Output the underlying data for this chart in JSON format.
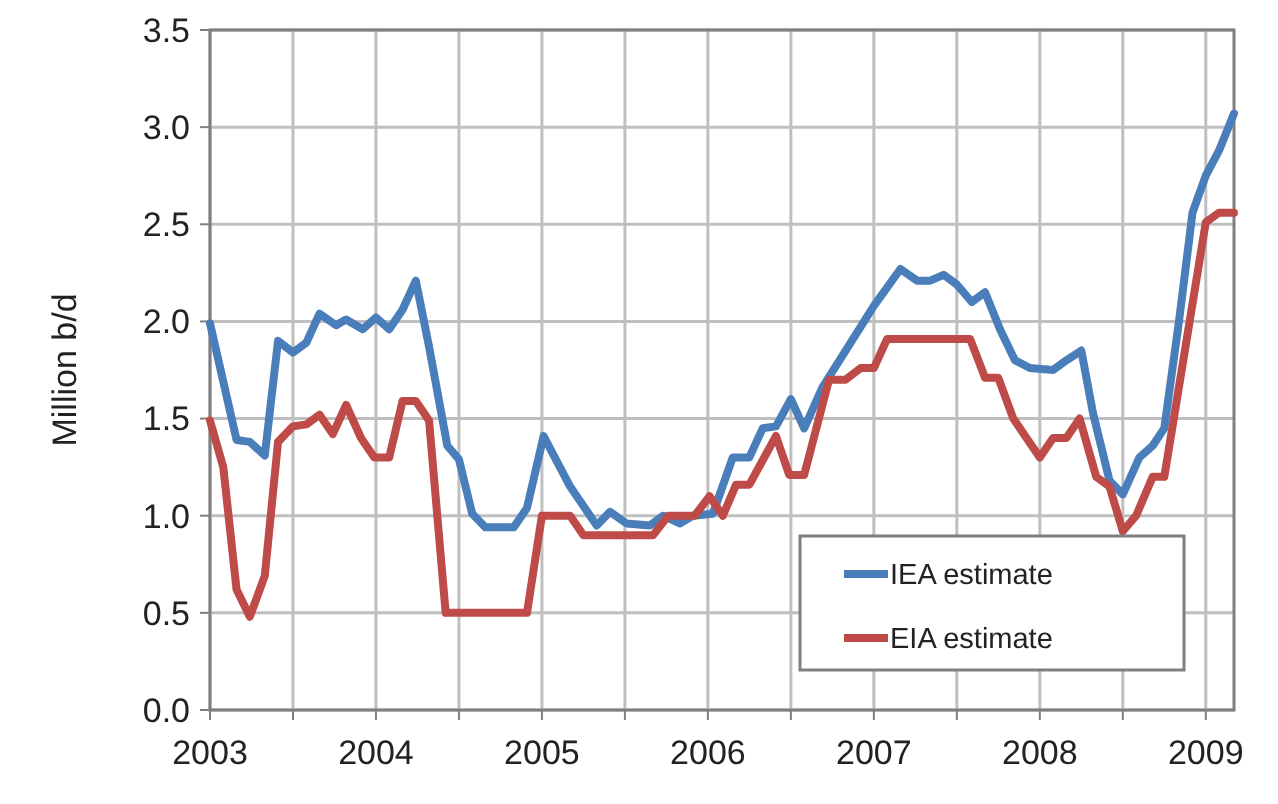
{
  "chart_data": {
    "type": "line",
    "ylabel": "Million b/d",
    "xlim": [
      2003,
      2009.17
    ],
    "xticks": [
      2003,
      {
        "value": 2003.5,
        "label": null
      },
      2004,
      {
        "value": 2004.5,
        "label": null
      },
      2005,
      {
        "value": 2005.5,
        "label": null
      },
      2006,
      {
        "value": 2006.5,
        "label": null
      },
      2007,
      {
        "value": 2007.5,
        "label": null
      },
      2008,
      {
        "value": 2008.5,
        "label": null
      },
      2009
    ],
    "ylim": [
      0,
      3.5
    ],
    "yticks": [
      {
        "value": 0,
        "label": "0.0"
      },
      {
        "value": 0.5,
        "label": "0.5"
      },
      {
        "value": 1,
        "label": "1.0"
      },
      {
        "value": 1.5,
        "label": "1.5"
      },
      {
        "value": 2,
        "label": "2.0"
      },
      {
        "value": 2.5,
        "label": "2.5"
      },
      {
        "value": 3,
        "label": "3.0"
      },
      {
        "value": 3.5,
        "label": "3.5"
      }
    ],
    "grid": true,
    "legend": "bottom right",
    "line_style": "solid",
    "marker": "none",
    "series": [
      {
        "name": "IEA estimate",
        "color": "#4a7ebb",
        "x": [
          2003.0,
          2003.16,
          2003.24,
          2003.33,
          2003.41,
          2003.5,
          2003.58,
          2003.66,
          2003.76,
          2003.82,
          2003.92,
          2004.0,
          2004.08,
          2004.16,
          2004.24,
          2004.32,
          2004.43,
          2004.5,
          2004.58,
          2004.66,
          2004.83,
          2004.91,
          2005.01,
          2005.17,
          2005.33,
          2005.41,
          2005.51,
          2005.65,
          2005.73,
          2005.83,
          2005.91,
          2006.03,
          2006.15,
          2006.25,
          2006.33,
          2006.41,
          2006.5,
          2006.58,
          2006.69,
          2006.83,
          2007.0,
          2007.16,
          2007.26,
          2007.34,
          2007.42,
          2007.5,
          2007.59,
          2007.67,
          2007.76,
          2007.85,
          2007.94,
          2008.08,
          2008.16,
          2008.25,
          2008.32,
          2008.42,
          2008.5,
          2008.6,
          2008.68,
          2008.75,
          2008.84,
          2008.92,
          2009.0,
          2009.08,
          2009.17
        ],
        "values": [
          1.99,
          1.39,
          1.38,
          1.31,
          1.9,
          1.84,
          1.89,
          2.04,
          1.98,
          2.01,
          1.96,
          2.02,
          1.96,
          2.06,
          2.21,
          1.87,
          1.36,
          1.29,
          1.01,
          0.94,
          0.94,
          1.04,
          1.41,
          1.15,
          0.95,
          1.02,
          0.96,
          0.95,
          1.0,
          0.96,
          1.0,
          1.01,
          1.3,
          1.3,
          1.45,
          1.46,
          1.6,
          1.45,
          1.66,
          1.85,
          2.08,
          2.27,
          2.21,
          2.21,
          2.24,
          2.19,
          2.1,
          2.15,
          1.96,
          1.8,
          1.76,
          1.75,
          1.8,
          1.85,
          1.53,
          1.18,
          1.11,
          1.3,
          1.36,
          1.45,
          2.01,
          2.56,
          2.75,
          2.88,
          3.07
        ]
      },
      {
        "name": "EIA estimate",
        "color": "#be4b48",
        "x": [
          2003.0,
          2003.08,
          2003.16,
          2003.24,
          2003.33,
          2003.41,
          2003.5,
          2003.58,
          2003.66,
          2003.74,
          2003.82,
          2003.91,
          2003.99,
          2004.08,
          2004.16,
          2004.24,
          2004.32,
          2004.42,
          2004.91,
          2005.0,
          2005.17,
          2005.25,
          2005.67,
          2005.76,
          2005.92,
          2006.01,
          2006.09,
          2006.17,
          2006.25,
          2006.41,
          2006.49,
          2006.58,
          2006.73,
          2006.83,
          2006.92,
          2007.0,
          2007.08,
          2007.58,
          2007.67,
          2007.75,
          2007.84,
          2008.0,
          2008.08,
          2008.16,
          2008.24,
          2008.34,
          2008.42,
          2008.5,
          2008.58,
          2008.68,
          2008.75,
          2009.0,
          2009.08,
          2009.17
        ],
        "values": [
          1.49,
          1.25,
          0.62,
          0.48,
          0.69,
          1.38,
          1.46,
          1.47,
          1.52,
          1.42,
          1.57,
          1.4,
          1.3,
          1.3,
          1.59,
          1.59,
          1.49,
          0.5,
          0.5,
          1.0,
          1.0,
          0.9,
          0.9,
          1.0,
          1.0,
          1.1,
          1.0,
          1.16,
          1.16,
          1.41,
          1.21,
          1.21,
          1.7,
          1.7,
          1.76,
          1.76,
          1.91,
          1.91,
          1.71,
          1.71,
          1.5,
          1.3,
          1.4,
          1.4,
          1.5,
          1.2,
          1.15,
          0.92,
          1.0,
          1.2,
          1.2,
          2.51,
          2.56,
          2.56
        ]
      }
    ]
  }
}
